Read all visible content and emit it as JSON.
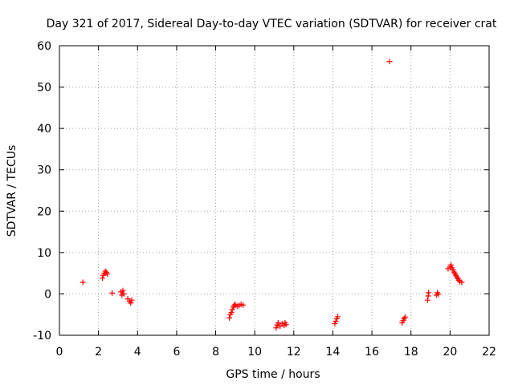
{
  "chart_data": {
    "type": "scatter",
    "title": "Day 321 of 2017, Sidereal Day-to-day VTEC variation (SDTVAR) for receiver crat",
    "xlabel": "GPS time / hours",
    "ylabel": "SDTVAR / TECUs",
    "xlim": [
      0,
      22
    ],
    "ylim": [
      -10,
      60
    ],
    "xticks": [
      "0",
      "2",
      "4",
      "6",
      "8",
      "10",
      "12",
      "14",
      "16",
      "18",
      "20",
      "22"
    ],
    "yticks": [
      "-10",
      "0",
      "10",
      "20",
      "30",
      "40",
      "50",
      "60"
    ],
    "grid": true,
    "marker": "+",
    "color": "#ff0000",
    "series": [
      {
        "name": "SDTVAR",
        "points": [
          [
            1.2,
            2.8
          ],
          [
            2.2,
            3.8
          ],
          [
            2.25,
            4.5
          ],
          [
            2.3,
            5.0
          ],
          [
            2.35,
            5.5
          ],
          [
            2.4,
            5.2
          ],
          [
            2.45,
            4.8
          ],
          [
            2.7,
            0.2
          ],
          [
            3.15,
            0.5
          ],
          [
            3.2,
            -0.3
          ],
          [
            3.25,
            0.8
          ],
          [
            3.3,
            0.0
          ],
          [
            3.5,
            -1.2
          ],
          [
            3.6,
            -1.8
          ],
          [
            3.65,
            -2.2
          ],
          [
            3.7,
            -1.5
          ],
          [
            8.7,
            -5.8
          ],
          [
            8.75,
            -5.0
          ],
          [
            8.8,
            -4.5
          ],
          [
            8.85,
            -3.8
          ],
          [
            8.9,
            -3.2
          ],
          [
            8.95,
            -2.8
          ],
          [
            9.0,
            -2.5
          ],
          [
            9.1,
            -3.0
          ],
          [
            9.2,
            -2.8
          ],
          [
            9.3,
            -2.5
          ],
          [
            9.4,
            -2.7
          ],
          [
            11.1,
            -8.2
          ],
          [
            11.15,
            -7.5
          ],
          [
            11.2,
            -7.0
          ],
          [
            11.3,
            -7.8
          ],
          [
            11.4,
            -7.2
          ],
          [
            11.5,
            -7.6
          ],
          [
            11.55,
            -7.0
          ],
          [
            11.6,
            -7.4
          ],
          [
            14.1,
            -7.2
          ],
          [
            14.15,
            -6.6
          ],
          [
            14.2,
            -6.0
          ],
          [
            14.25,
            -5.5
          ],
          [
            16.9,
            56.2
          ],
          [
            17.55,
            -7.0
          ],
          [
            17.6,
            -6.4
          ],
          [
            17.65,
            -6.0
          ],
          [
            17.7,
            -5.6
          ],
          [
            18.85,
            -1.5
          ],
          [
            18.88,
            -0.5
          ],
          [
            18.9,
            0.3
          ],
          [
            19.3,
            -0.3
          ],
          [
            19.35,
            0.3
          ],
          [
            19.4,
            -0.1
          ],
          [
            19.9,
            6.1
          ],
          [
            20.0,
            6.5
          ],
          [
            20.05,
            7.0
          ],
          [
            20.1,
            6.3
          ],
          [
            20.15,
            5.8
          ],
          [
            20.2,
            5.3
          ],
          [
            20.25,
            4.9
          ],
          [
            20.3,
            4.5
          ],
          [
            20.35,
            4.1
          ],
          [
            20.4,
            3.7
          ],
          [
            20.45,
            3.3
          ],
          [
            20.5,
            3.0
          ],
          [
            20.6,
            2.8
          ]
        ]
      }
    ]
  }
}
